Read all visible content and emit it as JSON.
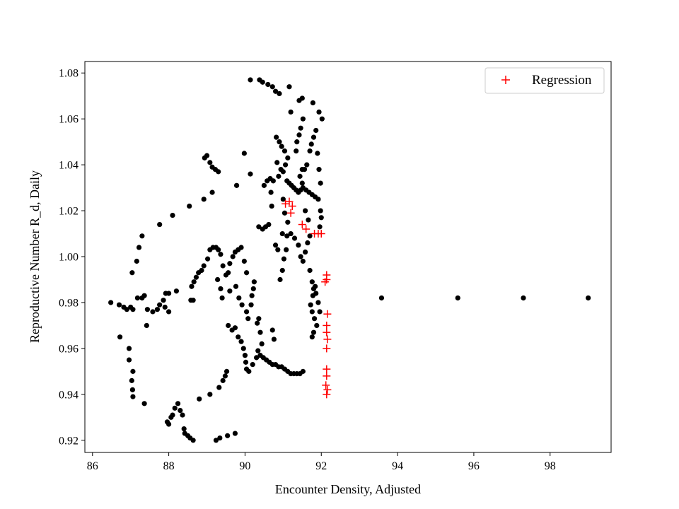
{
  "chart_data": {
    "type": "scatter",
    "xlabel": "Encounter Density, Adjusted",
    "ylabel": "Reproductive Number R_d, Daily",
    "xlim": [
      85.8,
      99.6
    ],
    "ylim": [
      0.9147,
      1.085
    ],
    "xticks": [
      86,
      88,
      90,
      92,
      94,
      96,
      98
    ],
    "yticks": [
      0.92,
      0.94,
      0.96,
      0.98,
      1.0,
      1.02,
      1.04,
      1.06,
      1.08
    ],
    "ytick_labels": [
      "0.92",
      "0.94",
      "0.96",
      "0.98",
      "1.00",
      "1.02",
      "1.04",
      "1.06",
      "1.08"
    ],
    "grid": false,
    "legend_position": "top-right",
    "legend_entries": [
      "Regression"
    ],
    "colors": {
      "observed": "#000000",
      "regression": "#ff0000"
    },
    "series": [
      {
        "marker": "dot",
        "color": "#000000",
        "points": [
          [
            86.48,
            0.98
          ],
          [
            86.7,
            0.979
          ],
          [
            86.82,
            0.978
          ],
          [
            86.9,
            0.977
          ],
          [
            87.0,
            0.978
          ],
          [
            87.06,
            0.977
          ],
          [
            87.18,
            0.982
          ],
          [
            87.3,
            0.982
          ],
          [
            87.36,
            0.983
          ],
          [
            87.44,
            0.977
          ],
          [
            87.58,
            0.976
          ],
          [
            87.7,
            0.977
          ],
          [
            87.76,
            0.979
          ],
          [
            87.86,
            0.981
          ],
          [
            87.92,
            0.984
          ],
          [
            88.0,
            0.984
          ],
          [
            87.9,
            0.978
          ],
          [
            88.0,
            0.976
          ],
          [
            88.2,
            0.985
          ],
          [
            88.58,
            0.981
          ],
          [
            88.64,
            0.981
          ],
          [
            86.72,
            0.965
          ],
          [
            86.96,
            0.96
          ],
          [
            86.96,
            0.955
          ],
          [
            87.06,
            0.95
          ],
          [
            87.03,
            0.946
          ],
          [
            87.05,
            0.942
          ],
          [
            87.06,
            0.939
          ],
          [
            87.04,
            0.993
          ],
          [
            87.16,
            0.998
          ],
          [
            87.22,
            1.004
          ],
          [
            87.3,
            1.009
          ],
          [
            87.42,
            0.97
          ],
          [
            87.36,
            0.936
          ],
          [
            87.76,
            1.014
          ],
          [
            88.1,
            1.018
          ],
          [
            88.54,
            1.022
          ],
          [
            88.92,
            1.025
          ],
          [
            89.14,
            1.028
          ],
          [
            88.94,
            1.043
          ],
          [
            89.0,
            1.044
          ],
          [
            89.08,
            1.041
          ],
          [
            89.14,
            1.039
          ],
          [
            89.22,
            1.038
          ],
          [
            89.3,
            1.037
          ],
          [
            87.96,
            0.928
          ],
          [
            88.0,
            0.927
          ],
          [
            88.06,
            0.93
          ],
          [
            88.1,
            0.931
          ],
          [
            88.16,
            0.934
          ],
          [
            88.24,
            0.936
          ],
          [
            88.3,
            0.933
          ],
          [
            88.36,
            0.931
          ],
          [
            88.4,
            0.925
          ],
          [
            88.42,
            0.923
          ],
          [
            88.5,
            0.922
          ],
          [
            88.56,
            0.921
          ],
          [
            88.64,
            0.92
          ],
          [
            89.24,
            0.92
          ],
          [
            89.34,
            0.921
          ],
          [
            89.54,
            0.922
          ],
          [
            89.74,
            0.923
          ],
          [
            88.8,
            0.938
          ],
          [
            89.08,
            0.94
          ],
          [
            89.32,
            0.943
          ],
          [
            89.42,
            0.946
          ],
          [
            89.48,
            0.948
          ],
          [
            89.52,
            0.95
          ],
          [
            88.6,
            0.987
          ],
          [
            88.66,
            0.989
          ],
          [
            88.72,
            0.991
          ],
          [
            88.78,
            0.993
          ],
          [
            88.86,
            0.994
          ],
          [
            88.92,
            0.996
          ],
          [
            89.02,
            0.999
          ],
          [
            89.08,
            1.003
          ],
          [
            89.16,
            1.004
          ],
          [
            89.24,
            1.004
          ],
          [
            89.3,
            1.003
          ],
          [
            89.36,
            1.001
          ],
          [
            89.42,
            0.996
          ],
          [
            89.5,
            0.992
          ],
          [
            89.56,
            0.993
          ],
          [
            89.6,
            0.997
          ],
          [
            89.68,
            1.0
          ],
          [
            89.74,
            1.002
          ],
          [
            89.82,
            1.003
          ],
          [
            89.9,
            1.004
          ],
          [
            89.98,
            0.998
          ],
          [
            90.04,
            0.993
          ],
          [
            89.28,
            0.99
          ],
          [
            89.36,
            0.986
          ],
          [
            89.4,
            0.982
          ],
          [
            89.6,
            0.985
          ],
          [
            89.76,
            0.987
          ],
          [
            89.84,
            0.982
          ],
          [
            89.92,
            0.979
          ],
          [
            90.04,
            0.976
          ],
          [
            90.08,
            0.973
          ],
          [
            90.16,
            0.979
          ],
          [
            90.18,
            0.983
          ],
          [
            90.22,
            0.986
          ],
          [
            90.24,
            0.989
          ],
          [
            89.56,
            0.97
          ],
          [
            89.66,
            0.968
          ],
          [
            89.74,
            0.969
          ],
          [
            89.82,
            0.965
          ],
          [
            89.9,
            0.963
          ],
          [
            89.96,
            0.96
          ],
          [
            90.0,
            0.957
          ],
          [
            90.02,
            0.954
          ],
          [
            90.04,
            0.951
          ],
          [
            90.1,
            0.95
          ],
          [
            90.2,
            0.953
          ],
          [
            90.3,
            0.956
          ],
          [
            90.4,
            0.957
          ],
          [
            90.48,
            0.956
          ],
          [
            90.56,
            0.955
          ],
          [
            90.64,
            0.954
          ],
          [
            90.72,
            0.953
          ],
          [
            90.8,
            0.953
          ],
          [
            90.88,
            0.952
          ],
          [
            90.96,
            0.952
          ],
          [
            91.04,
            0.951
          ],
          [
            91.12,
            0.95
          ],
          [
            91.2,
            0.949
          ],
          [
            91.28,
            0.949
          ],
          [
            91.36,
            0.949
          ],
          [
            91.44,
            0.949
          ],
          [
            91.52,
            0.95
          ],
          [
            90.32,
            0.971
          ],
          [
            90.36,
            0.973
          ],
          [
            90.4,
            0.967
          ],
          [
            90.44,
            0.962
          ],
          [
            90.34,
            0.959
          ],
          [
            90.72,
            0.968
          ],
          [
            90.76,
            0.964
          ],
          [
            90.14,
            1.077
          ],
          [
            90.38,
            1.077
          ],
          [
            90.46,
            1.076
          ],
          [
            90.6,
            1.075
          ],
          [
            90.72,
            1.074
          ],
          [
            90.8,
            1.072
          ],
          [
            90.9,
            1.071
          ],
          [
            91.16,
            1.074
          ],
          [
            91.42,
            1.068
          ],
          [
            91.5,
            1.069
          ],
          [
            91.78,
            1.067
          ],
          [
            91.94,
            1.063
          ],
          [
            92.02,
            1.06
          ],
          [
            91.2,
            1.063
          ],
          [
            89.98,
            1.045
          ],
          [
            90.14,
            1.036
          ],
          [
            89.78,
            1.031
          ],
          [
            90.5,
            1.031
          ],
          [
            90.58,
            1.033
          ],
          [
            90.66,
            1.034
          ],
          [
            90.74,
            1.033
          ],
          [
            90.68,
            1.028
          ],
          [
            90.7,
            1.022
          ],
          [
            90.36,
            1.013
          ],
          [
            90.46,
            1.012
          ],
          [
            90.54,
            1.013
          ],
          [
            90.62,
            1.014
          ],
          [
            90.82,
            1.052
          ],
          [
            90.9,
            1.05
          ],
          [
            90.96,
            1.048
          ],
          [
            91.04,
            1.046
          ],
          [
            91.12,
            1.043
          ],
          [
            91.06,
            1.04
          ],
          [
            91.0,
            1.037
          ],
          [
            90.84,
            1.041
          ],
          [
            90.94,
            1.038
          ],
          [
            90.88,
            1.035
          ],
          [
            91.1,
            1.033
          ],
          [
            91.16,
            1.032
          ],
          [
            91.22,
            1.031
          ],
          [
            91.28,
            1.03
          ],
          [
            91.34,
            1.029
          ],
          [
            91.4,
            1.028
          ],
          [
            91.46,
            1.029
          ],
          [
            91.52,
            1.03
          ],
          [
            91.6,
            1.029
          ],
          [
            91.68,
            1.028
          ],
          [
            91.76,
            1.027
          ],
          [
            91.84,
            1.026
          ],
          [
            91.92,
            1.025
          ],
          [
            91.98,
            1.02
          ],
          [
            92.0,
            1.017
          ],
          [
            91.96,
            1.013
          ],
          [
            91.0,
            1.025
          ],
          [
            91.04,
            1.019
          ],
          [
            91.12,
            1.015
          ],
          [
            90.98,
            1.01
          ],
          [
            91.1,
            1.009
          ],
          [
            91.2,
            1.01
          ],
          [
            91.3,
            1.008
          ],
          [
            91.4,
            1.005
          ],
          [
            91.46,
            1.0
          ],
          [
            91.52,
            0.998
          ],
          [
            91.58,
            1.002
          ],
          [
            91.64,
            1.006
          ],
          [
            91.7,
            1.009
          ],
          [
            91.08,
            1.003
          ],
          [
            91.02,
            0.999
          ],
          [
            90.98,
            0.994
          ],
          [
            90.92,
            0.99
          ],
          [
            90.86,
            1.003
          ],
          [
            90.8,
            1.005
          ],
          [
            91.44,
            1.035
          ],
          [
            91.5,
            1.038
          ],
          [
            91.56,
            1.038
          ],
          [
            91.62,
            1.04
          ],
          [
            91.5,
            1.032
          ],
          [
            91.58,
            1.02
          ],
          [
            91.66,
            1.016
          ],
          [
            91.34,
            1.046
          ],
          [
            91.36,
            1.05
          ],
          [
            91.42,
            1.053
          ],
          [
            91.46,
            1.056
          ],
          [
            91.52,
            1.06
          ],
          [
            91.7,
            1.046
          ],
          [
            91.74,
            1.049
          ],
          [
            91.8,
            1.052
          ],
          [
            91.86,
            1.055
          ],
          [
            91.9,
            1.045
          ],
          [
            91.94,
            1.038
          ],
          [
            91.98,
            1.032
          ],
          [
            91.7,
            0.994
          ],
          [
            91.76,
            0.989
          ],
          [
            91.8,
            0.986
          ],
          [
            91.84,
            0.987
          ],
          [
            91.78,
            0.983
          ],
          [
            91.72,
            0.979
          ],
          [
            91.76,
            0.976
          ],
          [
            91.82,
            0.973
          ],
          [
            91.88,
            0.97
          ],
          [
            91.8,
            0.967
          ],
          [
            91.76,
            0.965
          ],
          [
            91.86,
            0.984
          ],
          [
            91.92,
            0.98
          ],
          [
            91.96,
            0.976
          ],
          [
            93.58,
            0.982
          ],
          [
            95.58,
            0.982
          ],
          [
            97.3,
            0.982
          ],
          [
            99.0,
            0.982
          ]
        ]
      },
      {
        "name": "Regression",
        "marker": "plus",
        "color": "#ff0000",
        "points": [
          [
            91.06,
            1.023
          ],
          [
            91.16,
            1.024
          ],
          [
            91.24,
            1.022
          ],
          [
            91.2,
            1.019
          ],
          [
            91.5,
            1.014
          ],
          [
            91.6,
            1.012
          ],
          [
            91.82,
            1.01
          ],
          [
            91.92,
            1.01
          ],
          [
            92.0,
            1.01
          ],
          [
            92.14,
            0.992
          ],
          [
            92.14,
            0.99
          ],
          [
            92.1,
            0.989
          ],
          [
            92.16,
            0.975
          ],
          [
            92.14,
            0.97
          ],
          [
            92.14,
            0.967
          ],
          [
            92.16,
            0.964
          ],
          [
            92.14,
            0.96
          ],
          [
            92.14,
            0.951
          ],
          [
            92.14,
            0.948
          ],
          [
            92.12,
            0.944
          ],
          [
            92.16,
            0.942
          ],
          [
            92.14,
            0.94
          ]
        ]
      }
    ]
  }
}
